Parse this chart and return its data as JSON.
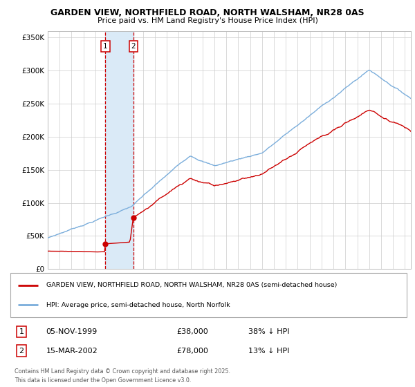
{
  "title": "GARDEN VIEW, NORTHFIELD ROAD, NORTH WALSHAM, NR28 0AS",
  "subtitle": "Price paid vs. HM Land Registry's House Price Index (HPI)",
  "ylim": [
    0,
    360000
  ],
  "yticks": [
    0,
    50000,
    100000,
    150000,
    200000,
    250000,
    300000,
    350000
  ],
  "ytick_labels": [
    "£0",
    "£50K",
    "£100K",
    "£150K",
    "£200K",
    "£250K",
    "£300K",
    "£350K"
  ],
  "xlim_start": 1995.0,
  "xlim_end": 2025.5,
  "sale1_date": 1999.845,
  "sale1_price": 38000,
  "sale2_date": 2002.205,
  "sale2_price": 78000,
  "red_color": "#cc0000",
  "blue_color": "#7aaddb",
  "shade_color": "#daeaf7",
  "grid_color": "#cccccc",
  "legend_line1": "GARDEN VIEW, NORTHFIELD ROAD, NORTH WALSHAM, NR28 0AS (semi-detached house)",
  "legend_line2": "HPI: Average price, semi-detached house, North Norfolk",
  "table_row1": [
    "1",
    "05-NOV-1999",
    "£38,000",
    "38% ↓ HPI"
  ],
  "table_row2": [
    "2",
    "15-MAR-2002",
    "£78,000",
    "13% ↓ HPI"
  ],
  "footer": "Contains HM Land Registry data © Crown copyright and database right 2025.\nThis data is licensed under the Open Government Licence v3.0."
}
